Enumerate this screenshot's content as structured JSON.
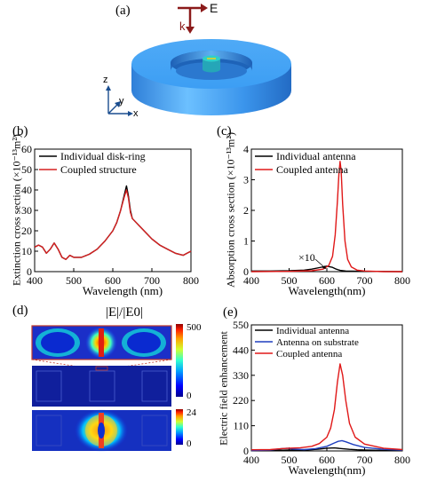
{
  "panel_a": {
    "label": "(a)",
    "k_label": "k",
    "e_label": "E",
    "axis_z": "z",
    "axis_y": "y",
    "axis_x": "x",
    "colors": {
      "ring": "#3f9ef5",
      "disk_top": "#2fd0c8",
      "arrow": "#8b1a1a"
    }
  },
  "panel_d": {
    "label": "(d)",
    "title": "|E|/|E0|",
    "cb1_max": "500",
    "cb1_min": "0",
    "cb2_max": "24",
    "cb2_min": "0"
  },
  "chart_data": [
    {
      "id": "b",
      "panel_label": "(b)",
      "type": "line",
      "xlabel": "Wavelength (nm)",
      "ylabel": "Extinction cross section (×10⁻¹³m²)",
      "xlim": [
        400,
        800
      ],
      "ylim": [
        0,
        60
      ],
      "xticks": [
        "400",
        "500",
        "600",
        "700",
        "800"
      ],
      "yticks": [
        "0",
        "10",
        "20",
        "30",
        "40",
        "50",
        "60"
      ],
      "legend_position": "top-right",
      "series": [
        {
          "name": "Individual disk-ring",
          "color": "#000000",
          "x": [
            400,
            410,
            420,
            430,
            440,
            450,
            460,
            470,
            480,
            490,
            500,
            520,
            540,
            560,
            580,
            600,
            610,
            620,
            630,
            635,
            640,
            645,
            650,
            660,
            680,
            700,
            720,
            740,
            760,
            780,
            790,
            800
          ],
          "y": [
            12,
            13,
            12,
            9,
            11,
            14,
            11,
            7,
            6,
            8,
            7,
            7,
            8.5,
            11,
            15,
            20,
            24,
            30,
            38,
            42,
            37,
            30,
            26,
            24,
            20,
            16,
            13,
            11,
            9,
            8,
            9,
            10
          ]
        },
        {
          "name": "Coupled structure",
          "color": "#d62020",
          "x": [
            400,
            410,
            420,
            430,
            440,
            450,
            460,
            470,
            480,
            490,
            500,
            520,
            540,
            560,
            580,
            600,
            610,
            620,
            630,
            635,
            640,
            645,
            650,
            660,
            680,
            700,
            720,
            740,
            760,
            780,
            790,
            800
          ],
          "y": [
            12,
            13,
            12,
            9,
            11,
            14,
            11,
            7,
            6,
            8,
            7,
            7,
            8.5,
            11,
            15,
            20,
            24,
            30,
            37,
            40,
            36,
            29,
            26,
            24,
            20,
            16,
            13,
            11,
            9,
            8,
            9,
            10
          ]
        }
      ]
    },
    {
      "id": "c",
      "panel_label": "(c)",
      "type": "line",
      "xlabel": "Wavelength(nm)",
      "ylabel": "Absorption cross section (×10⁻¹³m²)",
      "xlim": [
        400,
        800
      ],
      "ylim": [
        0,
        4
      ],
      "xticks": [
        "400",
        "500",
        "600",
        "700",
        "800"
      ],
      "yticks": [
        "0",
        "1",
        "2",
        "3",
        "4"
      ],
      "annotation": "×10",
      "legend_position": "top-right",
      "series": [
        {
          "name": "Individual antenna",
          "color": "#000000",
          "x": [
            400,
            450,
            500,
            540,
            560,
            580,
            600,
            615,
            625,
            635,
            650,
            700,
            800
          ],
          "y": [
            0.02,
            0.02,
            0.03,
            0.05,
            0.08,
            0.13,
            0.18,
            0.14,
            0.08,
            0.04,
            0.02,
            0.01,
            0.0
          ]
        },
        {
          "name": "Coupled antenna",
          "color": "#e01818",
          "x": [
            400,
            500,
            560,
            590,
            605,
            615,
            622,
            628,
            632,
            635,
            638,
            642,
            648,
            655,
            665,
            680,
            700,
            750,
            800
          ],
          "y": [
            0.0,
            0.01,
            0.03,
            0.08,
            0.2,
            0.5,
            1.2,
            2.3,
            3.2,
            3.6,
            3.3,
            2.2,
            1.0,
            0.4,
            0.15,
            0.05,
            0.02,
            0.0,
            0.0
          ]
        }
      ]
    },
    {
      "id": "e",
      "panel_label": "(e)",
      "type": "line",
      "xlabel": "Wavelength(nm)",
      "ylabel": "Electric field enhancement",
      "xlim": [
        400,
        800
      ],
      "ylim": [
        0,
        550
      ],
      "xticks": [
        "400",
        "500",
        "600",
        "700",
        "800"
      ],
      "yticks": [
        "0",
        "110",
        "220",
        "330",
        "440",
        "550"
      ],
      "legend_position": "top-right",
      "series": [
        {
          "name": "Individual antenna",
          "color": "#000000",
          "x": [
            400,
            450,
            480,
            500,
            520,
            540,
            560,
            580,
            600,
            620,
            640,
            660,
            680,
            700,
            750,
            800
          ],
          "y": [
            1,
            2,
            3,
            4,
            3,
            4,
            6,
            8,
            12,
            13,
            10,
            7,
            5,
            4,
            2,
            1
          ]
        },
        {
          "name": "Antenna on substrate",
          "color": "#1f3fbf",
          "x": [
            400,
            450,
            480,
            495,
            510,
            540,
            570,
            600,
            620,
            630,
            640,
            650,
            670,
            700,
            750,
            800
          ],
          "y": [
            2,
            4,
            10,
            12,
            8,
            6,
            10,
            20,
            35,
            42,
            45,
            40,
            28,
            15,
            7,
            3
          ]
        },
        {
          "name": "Coupled antenna",
          "color": "#e01818",
          "x": [
            400,
            450,
            480,
            500,
            530,
            560,
            580,
            600,
            610,
            620,
            628,
            635,
            642,
            650,
            660,
            675,
            700,
            750,
            800
          ],
          "y": [
            5,
            6,
            10,
            12,
            14,
            20,
            32,
            60,
            100,
            180,
            300,
            380,
            330,
            220,
            120,
            60,
            30,
            12,
            6
          ]
        }
      ]
    }
  ]
}
